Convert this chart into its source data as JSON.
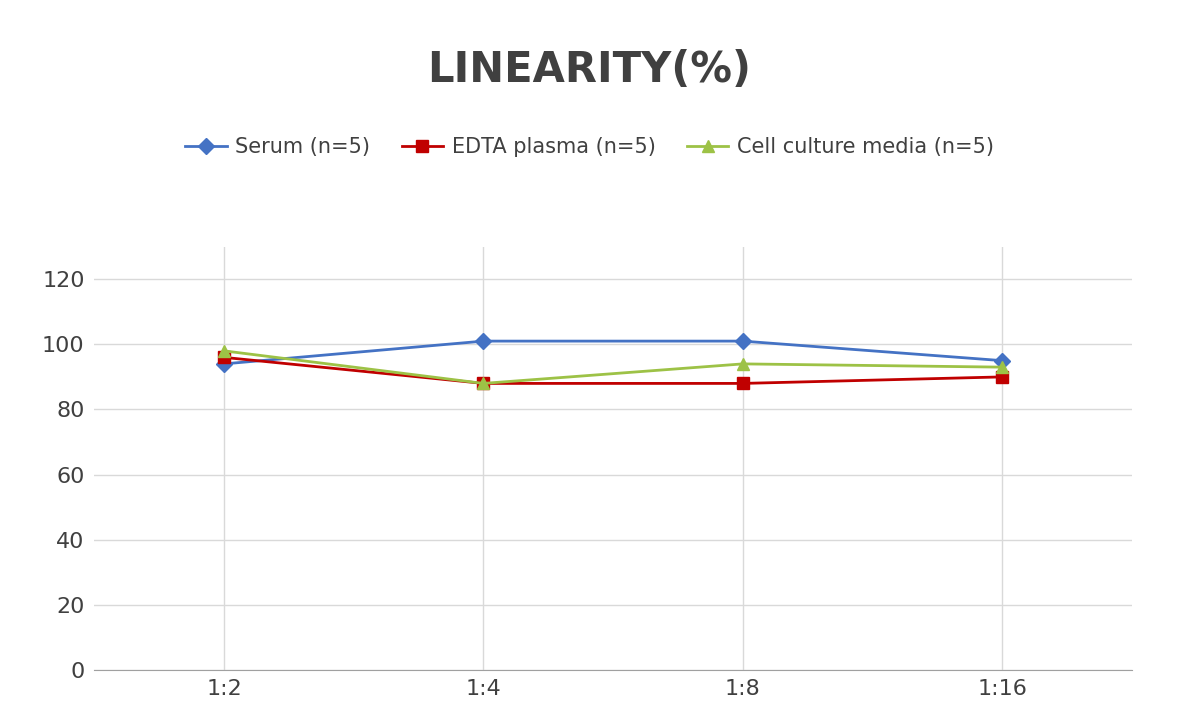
{
  "title": "LINEARITY(%)",
  "title_fontsize": 30,
  "title_fontweight": "bold",
  "x_labels": [
    "1:2",
    "1:4",
    "1:8",
    "1:16"
  ],
  "x_positions": [
    0,
    1,
    2,
    3
  ],
  "series": [
    {
      "label": "Serum (n=5)",
      "values": [
        94,
        101,
        101,
        95
      ],
      "color": "#4472C4",
      "marker": "D",
      "markersize": 8,
      "linewidth": 2
    },
    {
      "label": "EDTA plasma (n=5)",
      "values": [
        96,
        88,
        88,
        90
      ],
      "color": "#C00000",
      "marker": "s",
      "markersize": 8,
      "linewidth": 2
    },
    {
      "label": "Cell culture media (n=5)",
      "values": [
        98,
        88,
        94,
        93
      ],
      "color": "#9DC246",
      "marker": "^",
      "markersize": 8,
      "linewidth": 2
    }
  ],
  "ylim": [
    0,
    130
  ],
  "yticks": [
    0,
    20,
    40,
    60,
    80,
    100,
    120
  ],
  "background_color": "#FFFFFF",
  "grid_color": "#D9D9D9",
  "legend_fontsize": 15,
  "tick_fontsize": 16,
  "spine_color": "#A0A0A0",
  "title_color": "#404040"
}
